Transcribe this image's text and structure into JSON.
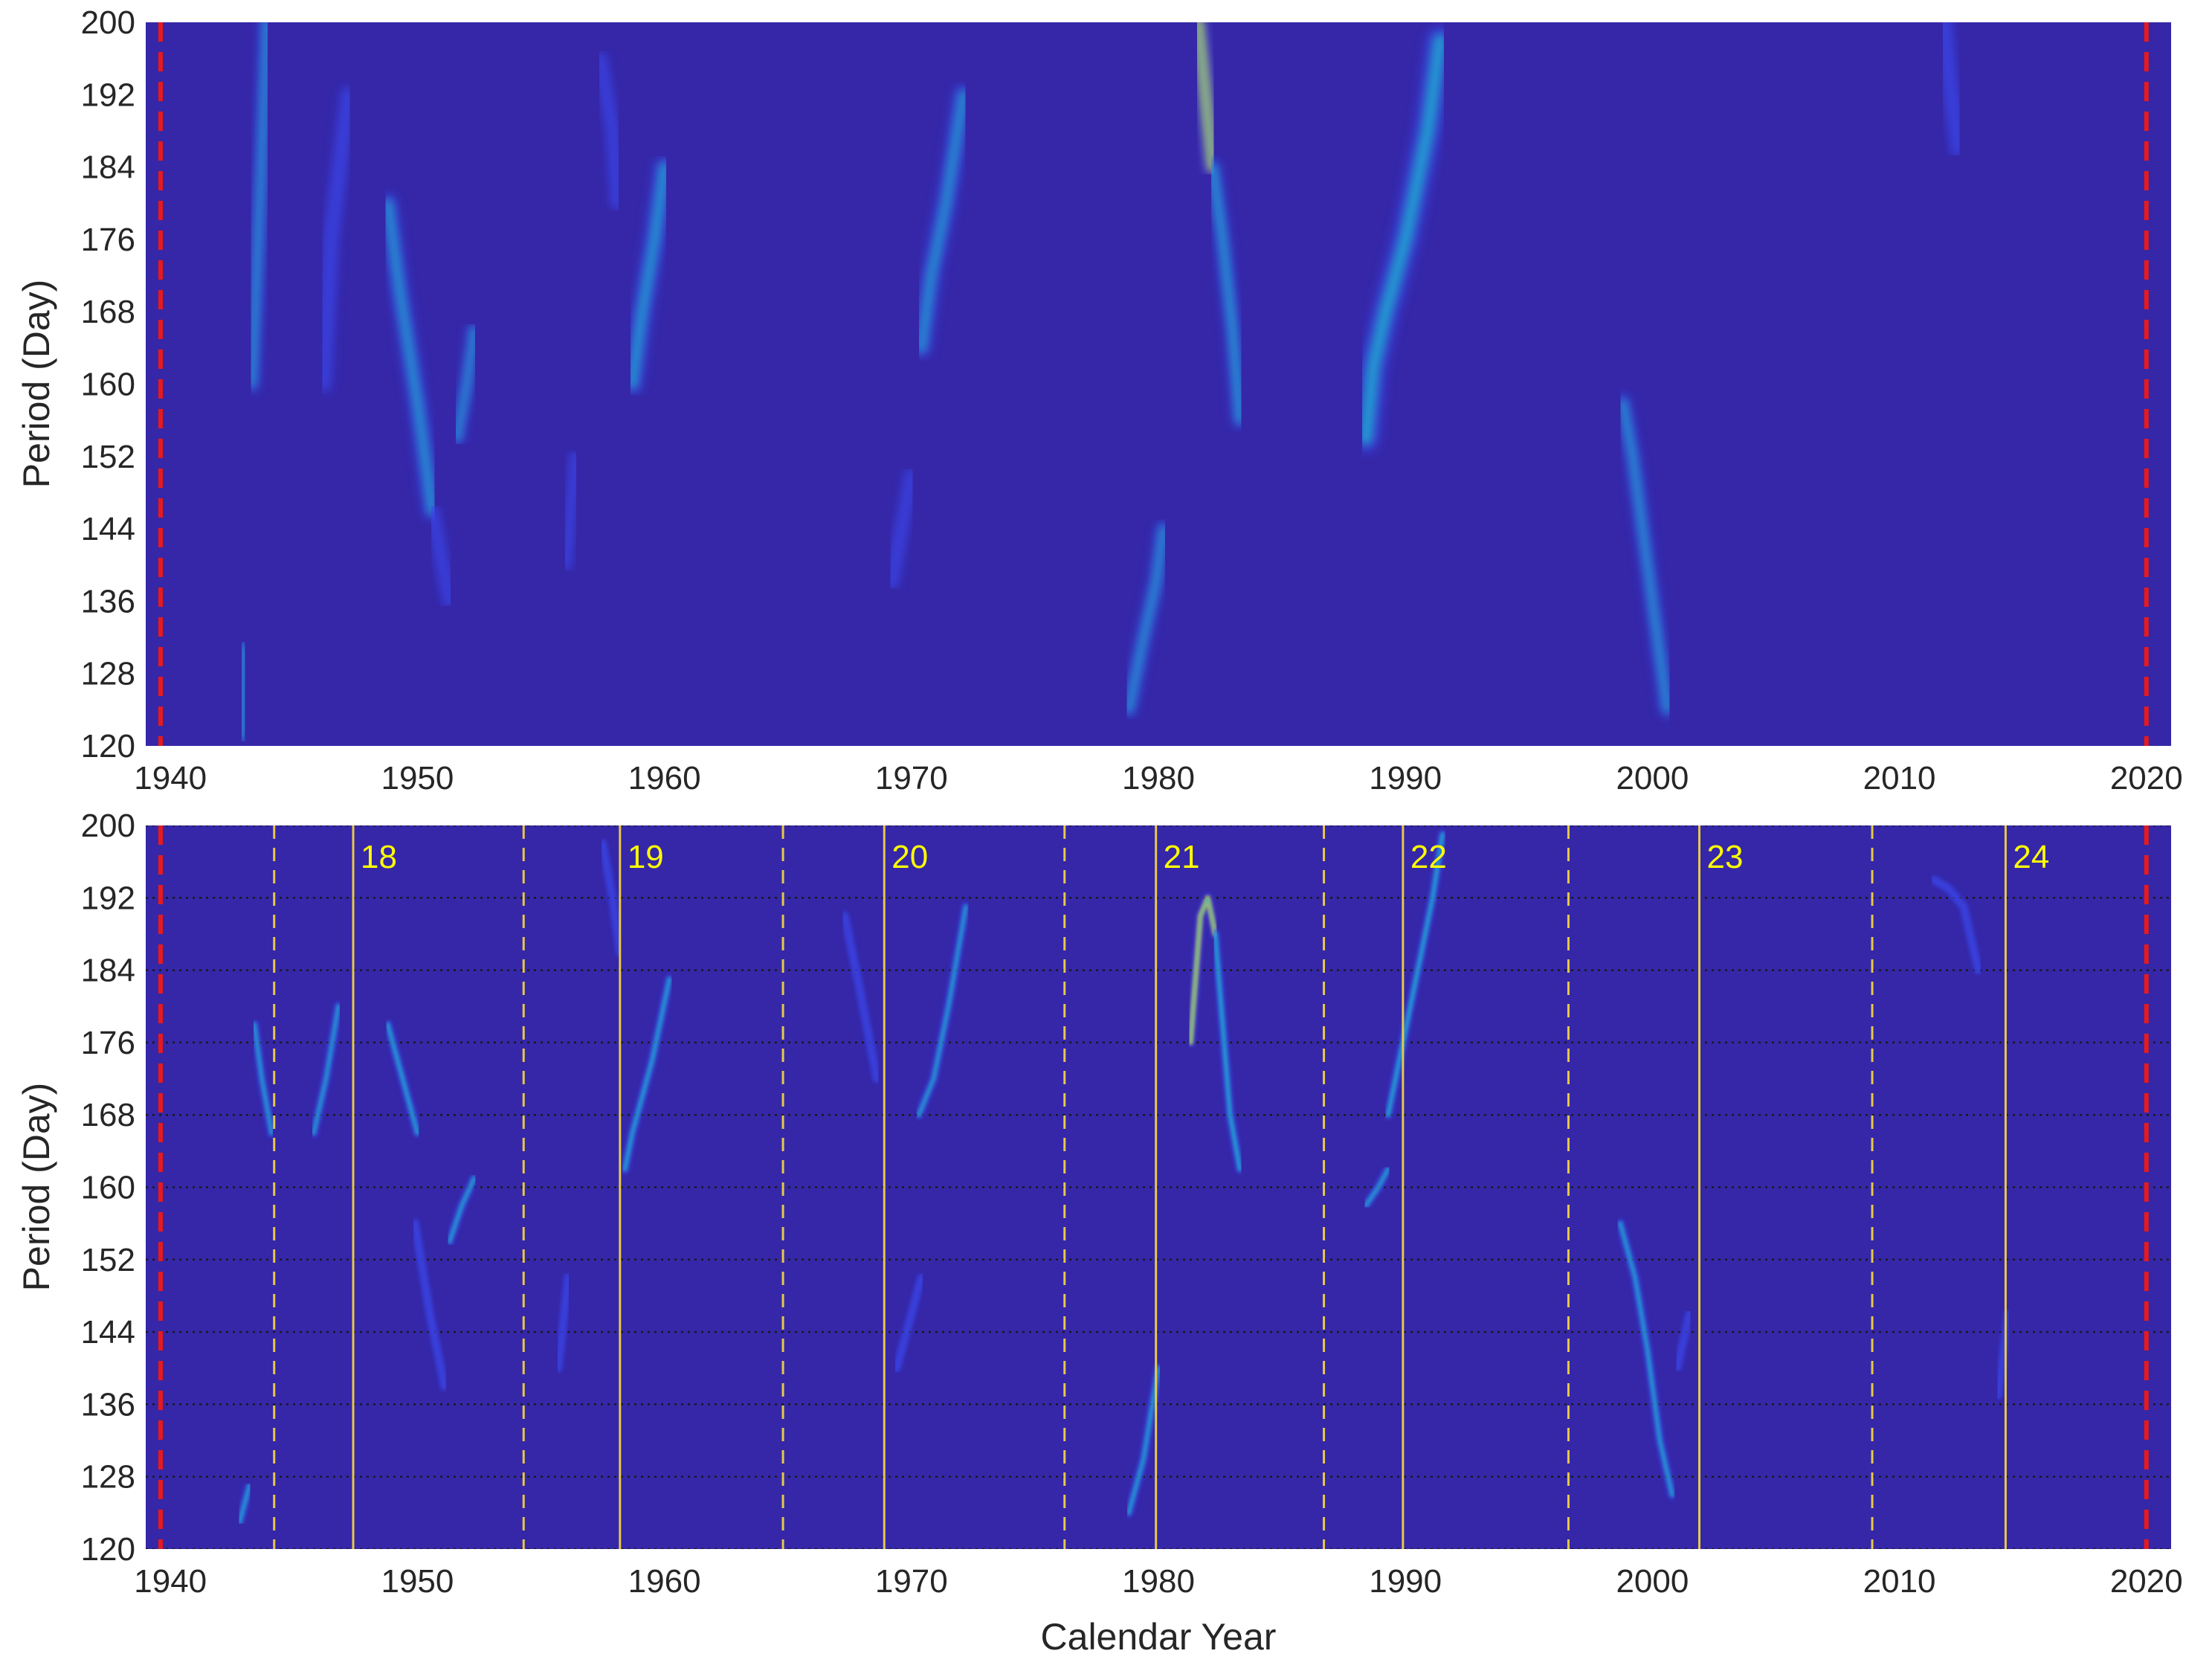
{
  "chart_data": [
    {
      "type": "heatmap",
      "panel": "top",
      "title": "",
      "xlabel": "",
      "ylabel": "Period (Day)",
      "xlim": [
        1939,
        2021
      ],
      "ylim": [
        120,
        200
      ],
      "x_ticks": [
        "1940",
        "1950",
        "1960",
        "1970",
        "1980",
        "1990",
        "2000",
        "2010",
        "2020"
      ],
      "y_ticks": [
        "120",
        "128",
        "136",
        "144",
        "152",
        "160",
        "168",
        "176",
        "184",
        "192",
        "200"
      ],
      "colors": {
        "background": "#3527a8",
        "low": "#3a44e6",
        "mid": "#1fb3d4",
        "high": "#f5d030"
      },
      "boundary_lines": {
        "x": [
          1939.6,
          2020.0
        ],
        "color": "#e8191b",
        "style": "dashed"
      },
      "ridges": [
        {
          "x": [
            1939.7,
            1939.7
          ],
          "y": [
            136,
            150
          ],
          "w": 0.25,
          "i": 0.55
        },
        {
          "x": [
            1942.9,
            1943.0
          ],
          "y": [
            121,
            131
          ],
          "w": 0.28,
          "i": 0.75
        },
        {
          "x": [
            1943.3,
            1943.7,
            1943.9
          ],
          "y": [
            160,
            185,
            200
          ],
          "w": 0.32,
          "i": 0.55
        },
        {
          "x": [
            1946.2,
            1946.5,
            1947.2
          ],
          "y": [
            160,
            176,
            192
          ],
          "w": 0.32,
          "i": 0.45
        },
        {
          "x": [
            1948.8,
            1949.3,
            1950.0,
            1950.6
          ],
          "y": [
            180,
            170,
            158,
            146
          ],
          "w": 0.38,
          "i": 0.6
        },
        {
          "x": [
            1950.6,
            1951.3
          ],
          "y": [
            146,
            136
          ],
          "w": 0.28,
          "i": 0.4
        },
        {
          "x": [
            1951.6,
            1952.0,
            1952.3
          ],
          "y": [
            154,
            160,
            166
          ],
          "w": 0.3,
          "i": 0.6
        },
        {
          "x": [
            1956.0,
            1956.4
          ],
          "y": [
            140,
            152
          ],
          "w": 0.25,
          "i": 0.3
        },
        {
          "x": [
            1957.4,
            1957.9,
            1958.1
          ],
          "y": [
            196,
            188,
            180
          ],
          "w": 0.28,
          "i": 0.4
        },
        {
          "x": [
            1958.7,
            1959.1,
            1959.6,
            1960.0
          ],
          "y": [
            160,
            168,
            176,
            184
          ],
          "w": 0.42,
          "i": 0.6
        },
        {
          "x": [
            1969.2,
            1969.6,
            1970.0
          ],
          "y": [
            138,
            144,
            150
          ],
          "w": 0.28,
          "i": 0.35
        },
        {
          "x": [
            1970.4,
            1970.8,
            1971.4,
            1972.1
          ],
          "y": [
            164,
            172,
            180,
            192
          ],
          "w": 0.4,
          "i": 0.5
        },
        {
          "x": [
            1978.8,
            1979.4,
            1979.9,
            1980.2
          ],
          "y": [
            124,
            132,
            138,
            144
          ],
          "w": 0.32,
          "i": 0.62
        },
        {
          "x": [
            1981.6,
            1981.9,
            1982.2
          ],
          "y": [
            200,
            192,
            184
          ],
          "w": 0.38,
          "i": 1.0
        },
        {
          "x": [
            1982.2,
            1982.6,
            1983.0,
            1983.3
          ],
          "y": [
            184,
            176,
            166,
            156
          ],
          "w": 0.32,
          "i": 0.82
        },
        {
          "x": [
            1988.4,
            1988.7,
            1989.2,
            1990.0,
            1990.9,
            1991.4
          ],
          "y": [
            154,
            162,
            168,
            176,
            188,
            198
          ],
          "w": 0.55,
          "i": 0.7
        },
        {
          "x": [
            1998.8,
            1999.2,
            1999.6,
            2000.1,
            2000.6
          ],
          "y": [
            158,
            152,
            144,
            134,
            124
          ],
          "w": 0.32,
          "i": 0.65
        },
        {
          "x": [
            2011.8,
            2012.0,
            2012.4
          ],
          "y": [
            200,
            194,
            186
          ],
          "w": 0.35,
          "i": 0.4
        }
      ]
    },
    {
      "type": "heatmap",
      "panel": "bottom",
      "title": "",
      "xlabel": "Calendar Year",
      "ylabel": "Period (Day)",
      "xlim": [
        1939,
        2021
      ],
      "ylim": [
        120,
        200
      ],
      "x_ticks": [
        "1940",
        "1950",
        "1960",
        "1970",
        "1980",
        "1990",
        "2000",
        "2010",
        "2020"
      ],
      "y_ticks": [
        "120",
        "128",
        "136",
        "144",
        "152",
        "160",
        "168",
        "176",
        "184",
        "192",
        "200"
      ],
      "grid": "horizontal dotted",
      "colors": {
        "background": "#3527a8",
        "low": "#3a44e6",
        "mid": "#1fb3d4",
        "high": "#f5d030"
      },
      "boundary_lines": {
        "x": [
          1939.6,
          2020.0
        ],
        "color": "#e8191b",
        "style": "dashed"
      },
      "cycle_minima": [
        1944.2,
        1954.3,
        1964.8,
        1976.2,
        1986.7,
        1996.6,
        2008.9
      ],
      "cycle_maxima": [
        {
          "year": 1947.4,
          "label": "18"
        },
        {
          "year": 1958.2,
          "label": "19"
        },
        {
          "year": 1968.9,
          "label": "20"
        },
        {
          "year": 1979.9,
          "label": "21"
        },
        {
          "year": 1989.9,
          "label": "22"
        },
        {
          "year": 2001.9,
          "label": "23"
        },
        {
          "year": 2014.3,
          "label": "24"
        }
      ],
      "ridges": [
        {
          "x": [
            1939.8,
            1939.8
          ],
          "y": [
            138,
            142
          ],
          "w": 0.09,
          "i": 0.5
        },
        {
          "x": [
            1942.8,
            1943.2
          ],
          "y": [
            123,
            127
          ],
          "w": 0.1,
          "i": 0.55
        },
        {
          "x": [
            1943.4,
            1943.7,
            1944.1
          ],
          "y": [
            178,
            172,
            166
          ],
          "w": 0.1,
          "i": 0.5
        },
        {
          "x": [
            1945.8,
            1946.3,
            1946.8
          ],
          "y": [
            166,
            172,
            180
          ],
          "w": 0.1,
          "i": 0.5
        },
        {
          "x": [
            1948.8,
            1949.4,
            1950.0
          ],
          "y": [
            178,
            172,
            166
          ],
          "w": 0.12,
          "i": 0.6
        },
        {
          "x": [
            1949.9,
            1950.5,
            1951.1
          ],
          "y": [
            156,
            146,
            138
          ],
          "w": 0.1,
          "i": 0.45
        },
        {
          "x": [
            1951.3,
            1951.8,
            1952.3
          ],
          "y": [
            154,
            158,
            161
          ],
          "w": 0.1,
          "i": 0.55
        },
        {
          "x": [
            1955.7,
            1956.1
          ],
          "y": [
            140,
            150
          ],
          "w": 0.08,
          "i": 0.3
        },
        {
          "x": [
            1957.5,
            1957.9,
            1958.2
          ],
          "y": [
            198,
            192,
            186
          ],
          "w": 0.1,
          "i": 0.35
        },
        {
          "x": [
            1958.4,
            1958.7,
            1959.5,
            1960.2
          ],
          "y": [
            162,
            166,
            174,
            183
          ],
          "w": 0.12,
          "i": 0.6
        },
        {
          "x": [
            1969.4,
            1969.9,
            1970.4
          ],
          "y": [
            140,
            145,
            150
          ],
          "w": 0.08,
          "i": 0.35
        },
        {
          "x": [
            1967.3,
            1967.9,
            1968.6
          ],
          "y": [
            190,
            182,
            172
          ],
          "w": 0.08,
          "i": 0.3
        },
        {
          "x": [
            1970.3,
            1970.9,
            1971.5,
            1972.2
          ],
          "y": [
            168,
            172,
            180,
            191
          ],
          "w": 0.1,
          "i": 0.5
        },
        {
          "x": [
            1978.8,
            1979.4,
            1980.0
          ],
          "y": [
            124,
            130,
            140
          ],
          "w": 0.1,
          "i": 0.55
        },
        {
          "x": [
            1981.3,
            1981.7,
            1982.0,
            1982.3
          ],
          "y": [
            176,
            190,
            192,
            188
          ],
          "w": 0.12,
          "i": 1.0
        },
        {
          "x": [
            1982.3,
            1982.6,
            1982.9,
            1983.3
          ],
          "y": [
            188,
            178,
            168,
            162
          ],
          "w": 0.12,
          "i": 0.72
        },
        {
          "x": [
            1983.3,
            1983.7
          ],
          "y": [
            162,
            162
          ],
          "w": 0.12,
          "i": 0.6
        },
        {
          "x": [
            1988.4,
            1988.9,
            1989.3
          ],
          "y": [
            158,
            160,
            162
          ],
          "w": 0.1,
          "i": 0.55
        },
        {
          "x": [
            1989.3,
            1989.9,
            1990.5,
            1991.1,
            1991.5
          ],
          "y": [
            168,
            176,
            184,
            192,
            199
          ],
          "w": 0.12,
          "i": 0.68
        },
        {
          "x": [
            1998.7,
            1999.3,
            1999.8,
            2000.3,
            2000.8
          ],
          "y": [
            156,
            150,
            142,
            132,
            126
          ],
          "w": 0.1,
          "i": 0.55
        },
        {
          "x": [
            2001.0,
            2001.5
          ],
          "y": [
            140,
            146
          ],
          "w": 0.08,
          "i": 0.35
        },
        {
          "x": [
            2011.4,
            2012.0,
            2012.6,
            2013.2
          ],
          "y": [
            194,
            193,
            191,
            184
          ],
          "w": 0.14,
          "i": 0.42
        },
        {
          "x": [
            2014.0,
            2014.4
          ],
          "y": [
            137,
            146
          ],
          "w": 0.08,
          "i": 0.25
        }
      ]
    }
  ]
}
